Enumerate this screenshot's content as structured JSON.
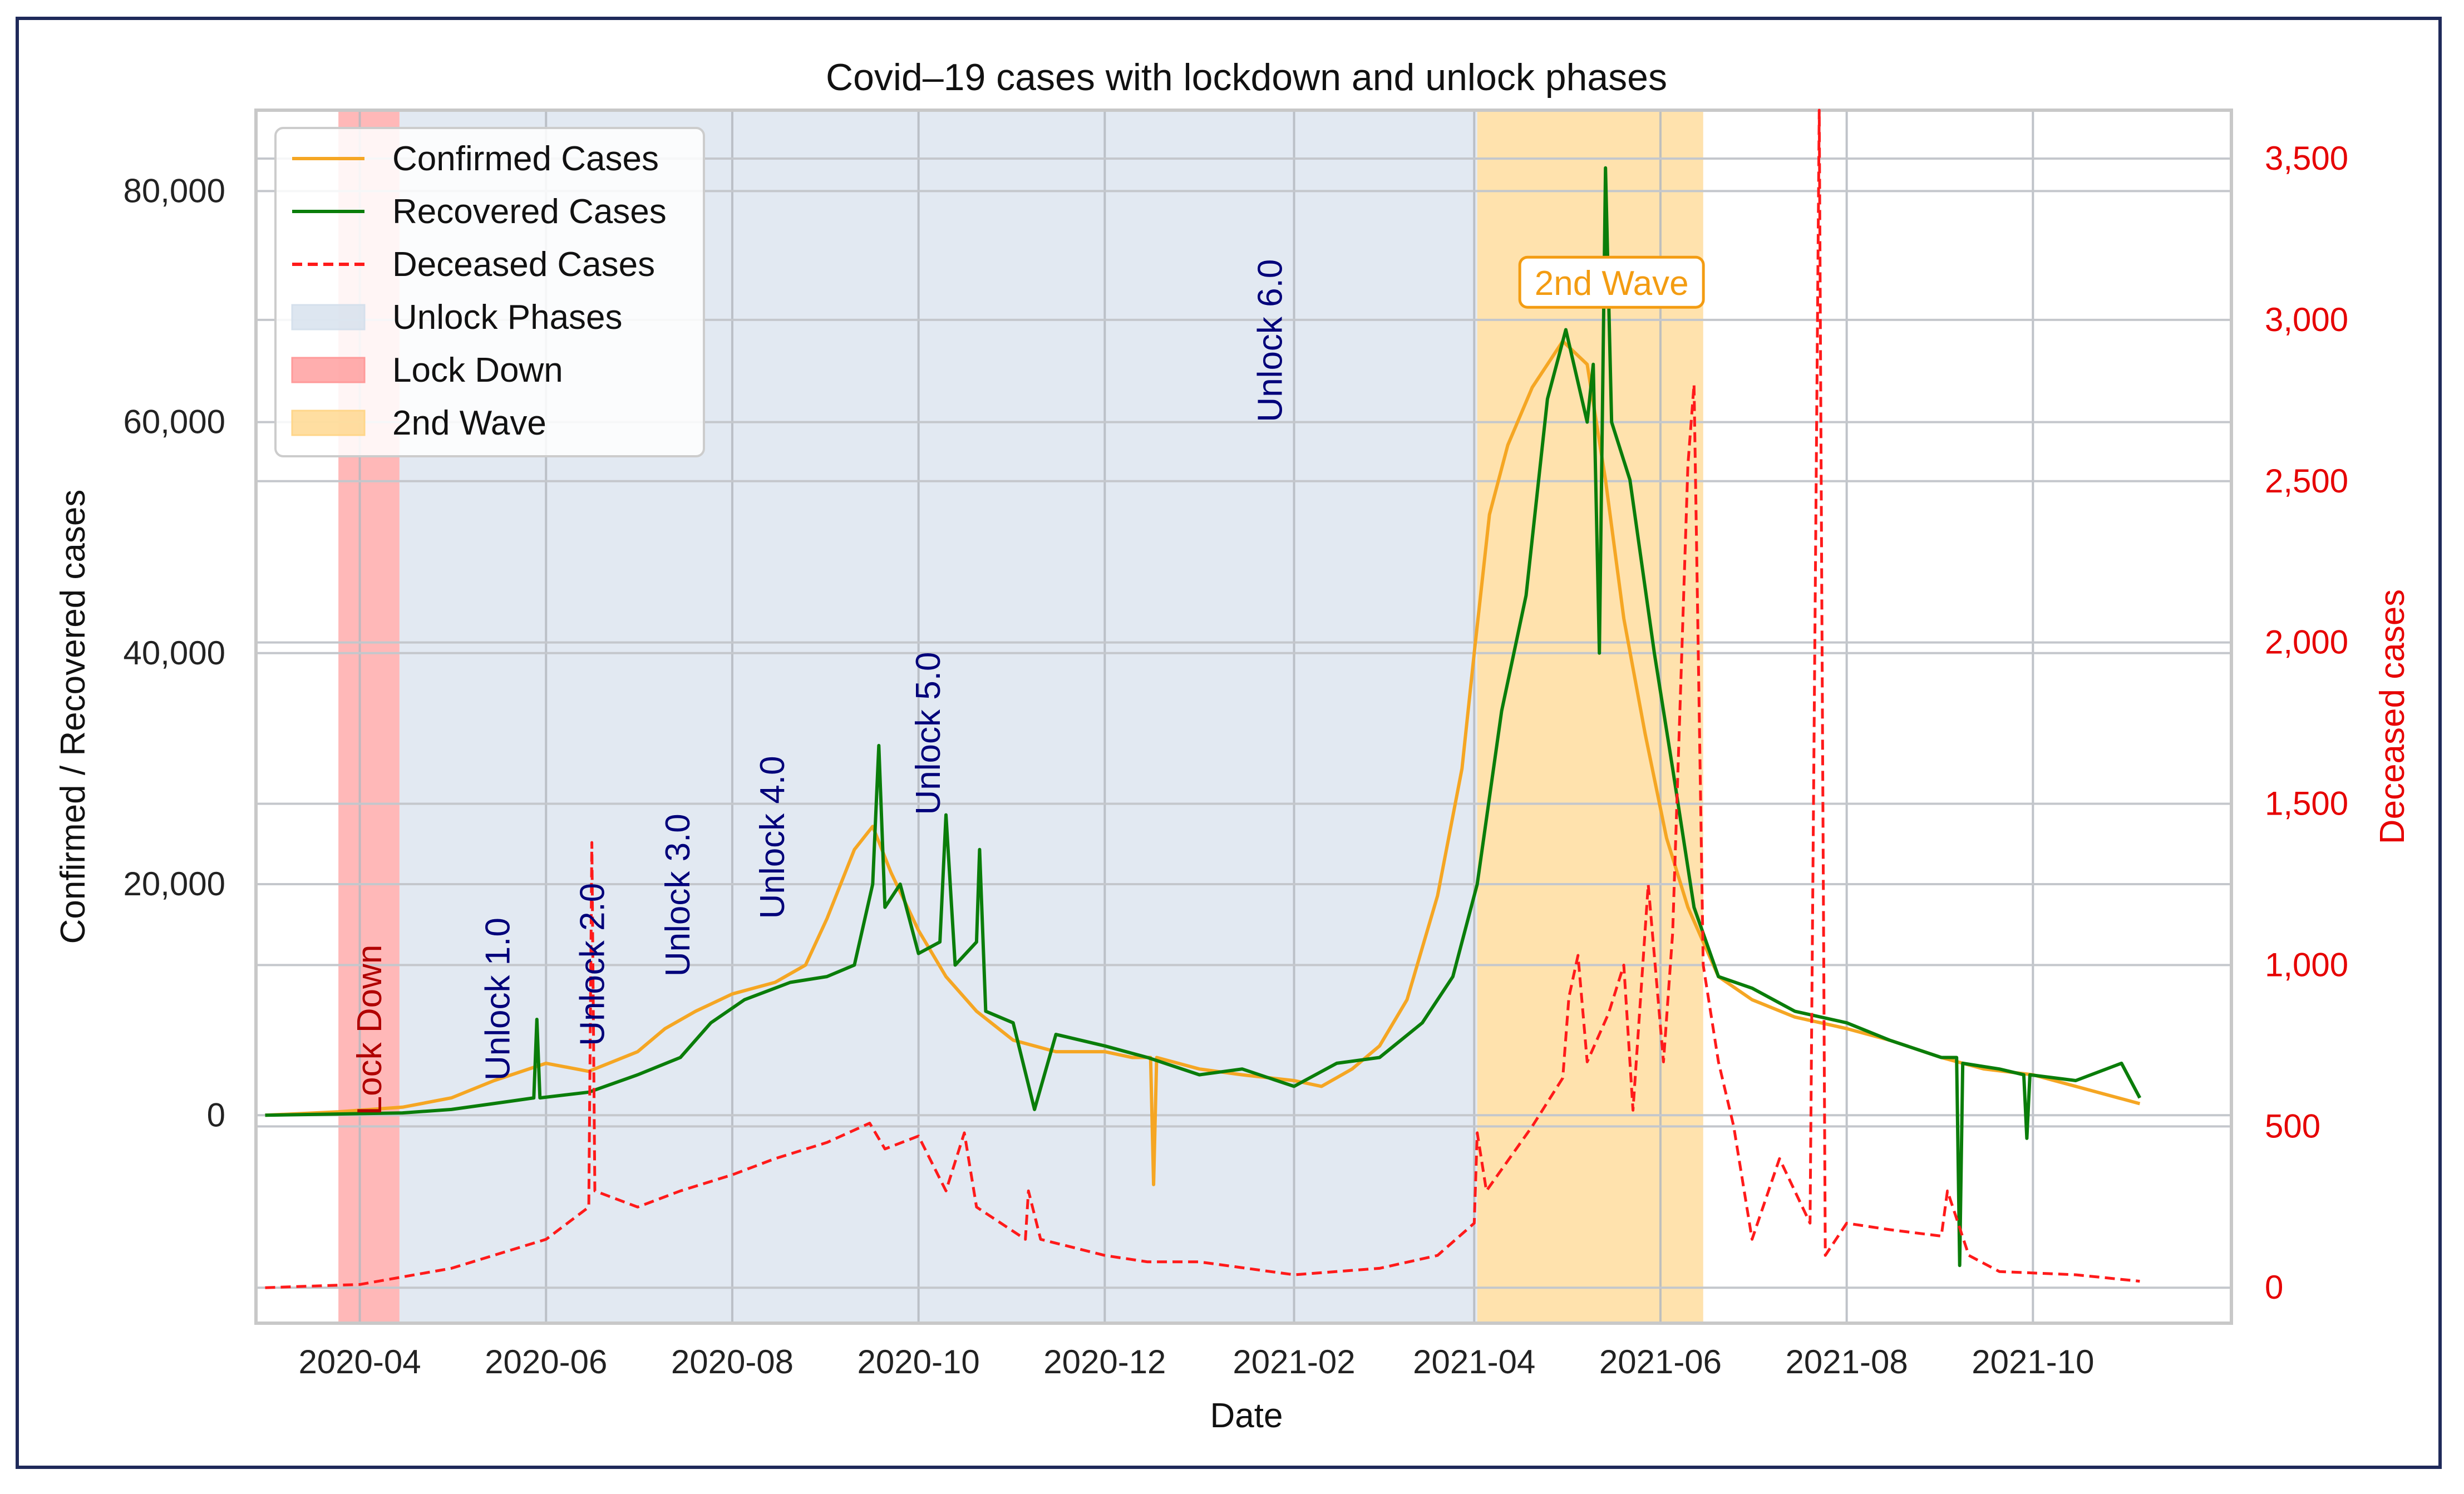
{
  "chart_data": {
    "type": "line",
    "title": "Covid–19 cases with lockdown and unlock phases",
    "xlabel": "Date",
    "ylabel": "Confirmed / Recovered cases",
    "y2label": "Deceased cases",
    "x_range": [
      "2020-02-27",
      "2021-12-05"
    ],
    "x_ticks": [
      "2020-04",
      "2020-06",
      "2020-08",
      "2020-10",
      "2020-12",
      "2021-02",
      "2021-04",
      "2021-06",
      "2021-08",
      "2021-10"
    ],
    "x_tick_dates": [
      "2020-04-01",
      "2020-06-01",
      "2020-08-01",
      "2020-10-01",
      "2020-12-01",
      "2021-02-01",
      "2021-04-01",
      "2021-06-01",
      "2021-08-01",
      "2021-10-01"
    ],
    "ylim": [
      -18000,
      87000
    ],
    "y_ticks": [
      0,
      20000,
      40000,
      60000,
      80000
    ],
    "y_tick_labels": [
      "0",
      "20,000",
      "40,000",
      "60,000",
      "80,000"
    ],
    "y2lim": [
      -110,
      3650
    ],
    "y2_ticks": [
      0,
      500,
      1000,
      1500,
      2000,
      2500,
      3000,
      3500
    ],
    "y2_tick_labels": [
      "0",
      "500",
      "1,000",
      "1,500",
      "2,000",
      "2,500",
      "3,000",
      "3,500"
    ],
    "legend_position": "top-left",
    "legend": [
      "Confirmed Cases",
      "Recovered Cases",
      "Deceased Cases",
      "Unlock Phases",
      "Lock Down",
      "2nd Wave"
    ],
    "spans": [
      {
        "name": "Lock Down",
        "start": "2020-03-25",
        "end": "2020-04-14",
        "color": "#ff9a9a"
      },
      {
        "name": "Unlock Phases",
        "start": "2020-04-14",
        "end": "2021-04-02",
        "color": "#d5e0ec"
      },
      {
        "name": "2nd Wave",
        "start": "2021-04-02",
        "end": "2021-06-15",
        "color": "#ffd68a"
      }
    ],
    "phase_labels": [
      {
        "text": "Lock Down",
        "date": "2020-04-08",
        "y": 0,
        "color": "#b00000"
      },
      {
        "text": "Unlock 1.0",
        "date": "2020-05-20",
        "y": 3000,
        "color": "#00007a"
      },
      {
        "text": "Unlock 2.0",
        "date": "2020-06-20",
        "y": 6000,
        "color": "#00007a"
      },
      {
        "text": "Unlock 3.0",
        "date": "2020-07-18",
        "y": 12000,
        "color": "#00007a"
      },
      {
        "text": "Unlock 4.0",
        "date": "2020-08-18",
        "y": 17000,
        "color": "#00007a"
      },
      {
        "text": "Unlock 5.0",
        "date": "2020-10-08",
        "y": 26000,
        "color": "#00007a"
      },
      {
        "text": "Unlock 6.0",
        "date": "2021-01-28",
        "y": 60000,
        "color": "#00007a"
      }
    ],
    "wave_label": {
      "text": "2nd Wave",
      "date": "2021-05-16",
      "y": 71000,
      "color": "#f39c12"
    },
    "series": [
      {
        "name": "Confirmed Cases",
        "color": "#f5a623",
        "dash": false,
        "axis": "left",
        "points": [
          [
            "2020-03-01",
            0
          ],
          [
            "2020-03-25",
            300
          ],
          [
            "2020-04-15",
            700
          ],
          [
            "2020-05-01",
            1500
          ],
          [
            "2020-05-15",
            3000
          ],
          [
            "2020-06-01",
            4500
          ],
          [
            "2020-06-15",
            3800
          ],
          [
            "2020-07-01",
            5500
          ],
          [
            "2020-07-10",
            7500
          ],
          [
            "2020-07-20",
            9000
          ],
          [
            "2020-08-01",
            10500
          ],
          [
            "2020-08-15",
            11500
          ],
          [
            "2020-08-25",
            13000
          ],
          [
            "2020-09-01",
            17000
          ],
          [
            "2020-09-10",
            23000
          ],
          [
            "2020-09-16",
            25000
          ],
          [
            "2020-09-22",
            21000
          ],
          [
            "2020-10-01",
            16000
          ],
          [
            "2020-10-10",
            12000
          ],
          [
            "2020-10-20",
            9000
          ],
          [
            "2020-11-01",
            6500
          ],
          [
            "2020-11-15",
            5500
          ],
          [
            "2020-12-01",
            5500
          ],
          [
            "2020-12-10",
            5000
          ],
          [
            "2020-12-16",
            5000
          ],
          [
            "2020-12-17",
            -6000
          ],
          [
            "2020-12-18",
            5000
          ],
          [
            "2021-01-01",
            4000
          ],
          [
            "2021-01-15",
            3500
          ],
          [
            "2021-02-01",
            3000
          ],
          [
            "2021-02-10",
            2500
          ],
          [
            "2021-02-20",
            4000
          ],
          [
            "2021-03-01",
            6000
          ],
          [
            "2021-03-10",
            10000
          ],
          [
            "2021-03-20",
            19000
          ],
          [
            "2021-03-28",
            30000
          ],
          [
            "2021-04-01",
            40000
          ],
          [
            "2021-04-06",
            52000
          ],
          [
            "2021-04-12",
            58000
          ],
          [
            "2021-04-20",
            63000
          ],
          [
            "2021-04-30",
            67000
          ],
          [
            "2021-05-08",
            65000
          ],
          [
            "2021-05-14",
            55000
          ],
          [
            "2021-05-20",
            43000
          ],
          [
            "2021-05-27",
            33000
          ],
          [
            "2021-06-03",
            24000
          ],
          [
            "2021-06-10",
            18000
          ],
          [
            "2021-06-20",
            12000
          ],
          [
            "2021-07-01",
            10000
          ],
          [
            "2021-07-15",
            8500
          ],
          [
            "2021-08-01",
            7500
          ],
          [
            "2021-08-15",
            6500
          ],
          [
            "2021-09-01",
            5000
          ],
          [
            "2021-09-15",
            4000
          ],
          [
            "2021-10-01",
            3500
          ],
          [
            "2021-10-15",
            2500
          ],
          [
            "2021-11-05",
            1000
          ]
        ]
      },
      {
        "name": "Recovered Cases",
        "color": "#0a7d0a",
        "dash": false,
        "axis": "left",
        "points": [
          [
            "2020-03-01",
            0
          ],
          [
            "2020-04-15",
            200
          ],
          [
            "2020-05-01",
            500
          ],
          [
            "2020-05-20",
            1200
          ],
          [
            "2020-05-28",
            1500
          ],
          [
            "2020-05-29",
            8300
          ],
          [
            "2020-05-30",
            1500
          ],
          [
            "2020-06-15",
            2000
          ],
          [
            "2020-07-01",
            3500
          ],
          [
            "2020-07-15",
            5000
          ],
          [
            "2020-07-25",
            8000
          ],
          [
            "2020-08-05",
            10000
          ],
          [
            "2020-08-20",
            11500
          ],
          [
            "2020-09-01",
            12000
          ],
          [
            "2020-09-10",
            13000
          ],
          [
            "2020-09-16",
            20000
          ],
          [
            "2020-09-18",
            32000
          ],
          [
            "2020-09-20",
            18000
          ],
          [
            "2020-09-25",
            20000
          ],
          [
            "2020-10-01",
            14000
          ],
          [
            "2020-10-08",
            15000
          ],
          [
            "2020-10-10",
            26000
          ],
          [
            "2020-10-13",
            13000
          ],
          [
            "2020-10-20",
            15000
          ],
          [
            "2020-10-21",
            23000
          ],
          [
            "2020-10-23",
            9000
          ],
          [
            "2020-11-01",
            8000
          ],
          [
            "2020-11-08",
            500
          ],
          [
            "2020-11-15",
            7000
          ],
          [
            "2020-12-01",
            6000
          ],
          [
            "2020-12-15",
            5000
          ],
          [
            "2021-01-01",
            3500
          ],
          [
            "2021-01-15",
            4000
          ],
          [
            "2021-02-01",
            2500
          ],
          [
            "2021-02-15",
            4500
          ],
          [
            "2021-03-01",
            5000
          ],
          [
            "2021-03-15",
            8000
          ],
          [
            "2021-03-25",
            12000
          ],
          [
            "2021-04-02",
            20000
          ],
          [
            "2021-04-10",
            35000
          ],
          [
            "2021-04-18",
            45000
          ],
          [
            "2021-04-25",
            62000
          ],
          [
            "2021-05-01",
            68000
          ],
          [
            "2021-05-08",
            60000
          ],
          [
            "2021-05-10",
            65000
          ],
          [
            "2021-05-12",
            40000
          ],
          [
            "2021-05-14",
            82000
          ],
          [
            "2021-05-16",
            60000
          ],
          [
            "2021-05-22",
            55000
          ],
          [
            "2021-05-30",
            40000
          ],
          [
            "2021-06-05",
            30000
          ],
          [
            "2021-06-12",
            18000
          ],
          [
            "2021-06-20",
            12000
          ],
          [
            "2021-07-01",
            11000
          ],
          [
            "2021-07-15",
            9000
          ],
          [
            "2021-08-01",
            8000
          ],
          [
            "2021-08-15",
            6500
          ],
          [
            "2021-09-01",
            5000
          ],
          [
            "2021-09-06",
            5000
          ],
          [
            "2021-09-07",
            -13000
          ],
          [
            "2021-09-08",
            4500
          ],
          [
            "2021-09-20",
            4000
          ],
          [
            "2021-09-28",
            3500
          ],
          [
            "2021-09-29",
            -2000
          ],
          [
            "2021-09-30",
            3500
          ],
          [
            "2021-10-15",
            3000
          ],
          [
            "2021-10-30",
            4500
          ],
          [
            "2021-11-05",
            1500
          ]
        ]
      },
      {
        "name": "Deceased Cases",
        "color": "#ff1a1a",
        "dash": true,
        "axis": "right",
        "points": [
          [
            "2020-03-01",
            0
          ],
          [
            "2020-04-01",
            10
          ],
          [
            "2020-05-01",
            60
          ],
          [
            "2020-06-01",
            150
          ],
          [
            "2020-06-15",
            250
          ],
          [
            "2020-06-16",
            1380
          ],
          [
            "2020-06-17",
            300
          ],
          [
            "2020-07-01",
            250
          ],
          [
            "2020-07-15",
            300
          ],
          [
            "2020-08-01",
            350
          ],
          [
            "2020-08-15",
            400
          ],
          [
            "2020-09-01",
            450
          ],
          [
            "2020-09-15",
            510
          ],
          [
            "2020-09-20",
            430
          ],
          [
            "2020-10-01",
            470
          ],
          [
            "2020-10-10",
            300
          ],
          [
            "2020-10-16",
            480
          ],
          [
            "2020-10-20",
            250
          ],
          [
            "2020-11-05",
            150
          ],
          [
            "2020-11-06",
            300
          ],
          [
            "2020-11-10",
            150
          ],
          [
            "2020-12-01",
            100
          ],
          [
            "2020-12-15",
            80
          ],
          [
            "2021-01-01",
            80
          ],
          [
            "2021-02-01",
            40
          ],
          [
            "2021-03-01",
            60
          ],
          [
            "2021-03-20",
            100
          ],
          [
            "2021-04-01",
            200
          ],
          [
            "2021-04-02",
            480
          ],
          [
            "2021-04-05",
            300
          ],
          [
            "2021-04-20",
            500
          ],
          [
            "2021-04-30",
            650
          ],
          [
            "2021-05-02",
            900
          ],
          [
            "2021-05-05",
            1030
          ],
          [
            "2021-05-08",
            700
          ],
          [
            "2021-05-15",
            850
          ],
          [
            "2021-05-20",
            1000
          ],
          [
            "2021-05-23",
            550
          ],
          [
            "2021-05-28",
            1250
          ],
          [
            "2021-06-02",
            700
          ],
          [
            "2021-06-05",
            1100
          ],
          [
            "2021-06-10",
            2550
          ],
          [
            "2021-06-12",
            2800
          ],
          [
            "2021-06-15",
            1000
          ],
          [
            "2021-06-20",
            700
          ],
          [
            "2021-06-25",
            500
          ],
          [
            "2021-07-01",
            150
          ],
          [
            "2021-07-10",
            400
          ],
          [
            "2021-07-20",
            200
          ],
          [
            "2021-07-23",
            3650
          ],
          [
            "2021-07-25",
            100
          ],
          [
            "2021-08-01",
            200
          ],
          [
            "2021-08-15",
            180
          ],
          [
            "2021-09-01",
            160
          ],
          [
            "2021-09-03",
            300
          ],
          [
            "2021-09-10",
            100
          ],
          [
            "2021-09-20",
            50
          ],
          [
            "2021-10-15",
            40
          ],
          [
            "2021-11-05",
            20
          ]
        ]
      }
    ]
  }
}
